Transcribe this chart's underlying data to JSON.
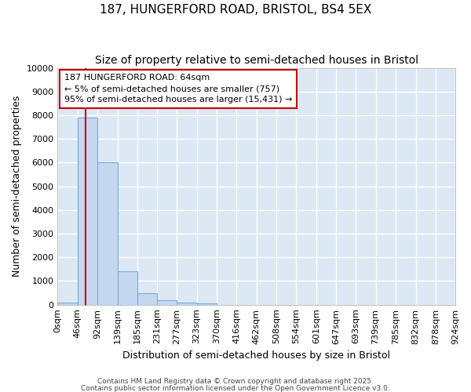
{
  "title": "187, HUNGERFORD ROAD, BRISTOL, BS4 5EX",
  "subtitle": "Size of property relative to semi-detached houses in Bristol",
  "xlabel": "Distribution of semi-detached houses by size in Bristol",
  "ylabel": "Number of semi-detached properties",
  "bar_values": [
    100,
    7900,
    6000,
    1400,
    500,
    200,
    100,
    50,
    0,
    0,
    0,
    0,
    0,
    0,
    0,
    0,
    0,
    0,
    0,
    0
  ],
  "bin_edges": [
    0,
    46,
    92,
    139,
    185,
    231,
    277,
    323,
    370,
    416,
    462,
    508,
    554,
    601,
    647,
    693,
    739,
    785,
    832,
    878,
    924
  ],
  "x_tick_labels": [
    "0sqm",
    "46sqm",
    "92sqm",
    "139sqm",
    "185sqm",
    "231sqm",
    "277sqm",
    "323sqm",
    "370sqm",
    "416sqm",
    "462sqm",
    "508sqm",
    "554sqm",
    "601sqm",
    "647sqm",
    "693sqm",
    "739sqm",
    "785sqm",
    "832sqm",
    "878sqm",
    "924sqm"
  ],
  "bar_color": "#c5d8f0",
  "bar_edgecolor": "#7aadd4",
  "property_line_x": 64,
  "annotation_text_line1": "187 HUNGERFORD ROAD: 64sqm",
  "annotation_text_line2": "← 5% of semi-detached houses are smaller (757)",
  "annotation_text_line3": "95% of semi-detached houses are larger (15,431) →",
  "ylim": [
    0,
    10000
  ],
  "yticks": [
    0,
    1000,
    2000,
    3000,
    4000,
    5000,
    6000,
    7000,
    8000,
    9000,
    10000
  ],
  "figure_background": "#ffffff",
  "plot_background": "#dde8f5",
  "grid_color": "#ffffff",
  "annotation_box_facecolor": "#ffffff",
  "annotation_box_edgecolor": "#cc0000",
  "red_line_color": "#cc0000",
  "footer_line1": "Contains HM Land Registry data © Crown copyright and database right 2025.",
  "footer_line2": "Contains public sector information licensed under the Open Government Licence v3.0.",
  "title_fontsize": 11,
  "subtitle_fontsize": 10,
  "xlabel_fontsize": 9,
  "ylabel_fontsize": 9,
  "tick_fontsize": 8,
  "annotation_fontsize": 8,
  "footer_fontsize": 6.5
}
